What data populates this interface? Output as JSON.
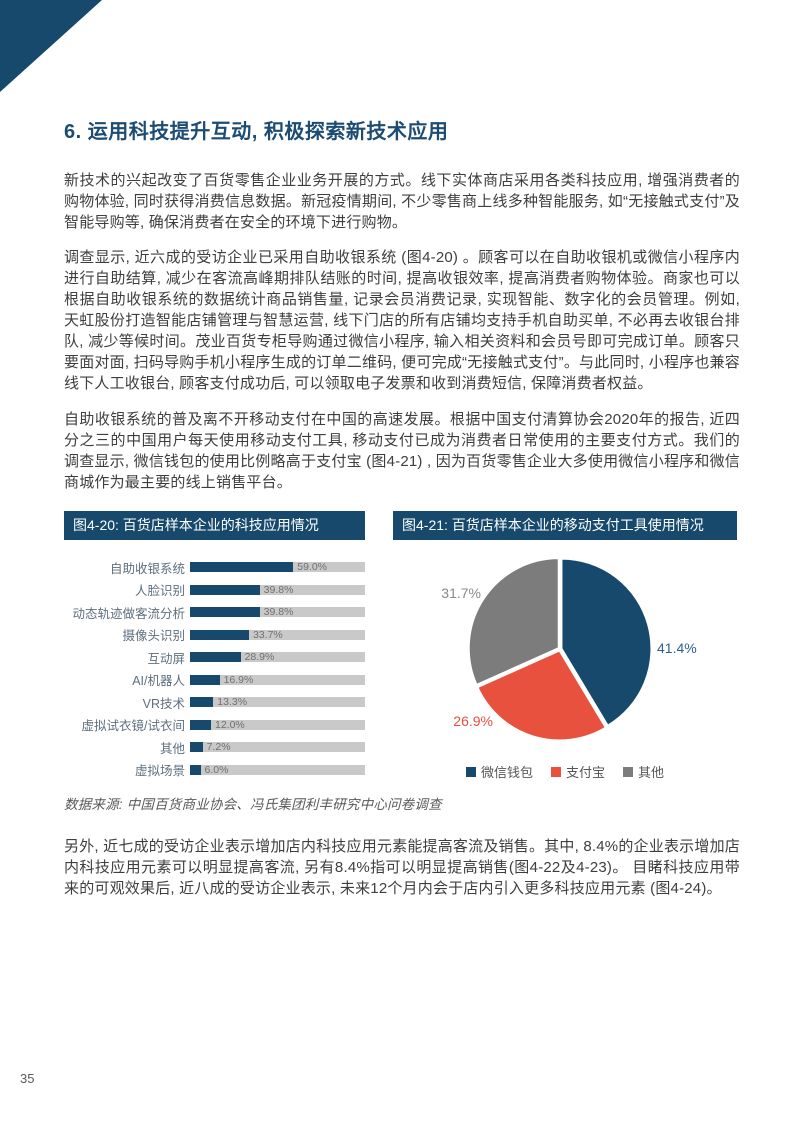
{
  "page": {
    "heading": "6. 运用科技提升互动, 积极探索新技术应用",
    "paragraphs": [
      "新技术的兴起改变了百货零售企业业务开展的方式。线下实体商店采用各类科技应用, 增强消费者的购物体验, 同时获得消费信息数据。新冠疫情期间, 不少零售商上线多种智能服务, 如“无接触式支付”及智能导购等, 确保消费者在安全的环境下进行购物。",
      "调查显示, 近六成的受访企业已采用自助收银系统 (图4-20) 。顾客可以在自助收银机或微信小程序内进行自助结算, 减少在客流高峰期排队结账的时间, 提高收银效率, 提高消费者购物体验。商家也可以根据自助收银系统的数据统计商品销售量, 记录会员消费记录, 实现智能、数字化的会员管理。例如, 天虹股份打造智能店铺管理与智慧运营, 线下门店的所有店铺均支持手机自助买单, 不必再去收银台排队, 减少等候时间。茂业百货专柜导购通过微信小程序, 输入相关资料和会员号即可完成订单。顾客只要面对面, 扫码导购手机小程序生成的订单二维码, 便可完成“无接触式支付”。与此同时, 小程序也兼容线下人工收银台, 顾客支付成功后, 可以领取电子发票和收到消费短信, 保障消费者权益。",
      "自助收银系统的普及离不开移动支付在中国的高速发展。根据中国支付清算协会2020年的报告, 近四分之三的中国用户每天使用移动支付工具, 移动支付已成为消费者日常使用的主要支付方式。我们的调查显示, 微信钱包的使用比例略高于支付宝 (图4-21) , 因为百货零售企业大多使用微信小程序和微信商城作为最主要的线上销售平台。"
    ],
    "closing_paragraph": "另外, 近七成的受访企业表示增加店内科技应用元素能提高客流及销售。其中, 8.4%的企业表示增加店内科技应用元素可以明显提高客流, 另有8.4%指可以明显提高销售(图4-22及4-23)。 目睹科技应用带来的可观效果后, 近八成的受访企业表示, 未来12个月内会于店内引入更多科技应用元素 (图4-24)。",
    "source_note": "数据来源: 中国百货商业协会、冯氏集团利丰研究中心问卷调查",
    "page_number": "35"
  },
  "colors": {
    "navy": "#17496D",
    "heading_blue": "#1C4B73",
    "red": "#E8513D",
    "pie_gray": "#7C7C7C",
    "bar_track_gray": "#C9C9C9",
    "pie_label_blue": "#2E6093",
    "pie_label_gray": "#8A8A8A"
  },
  "chart_data": [
    {
      "type": "bar",
      "orientation": "horizontal",
      "title": "图4-20: 百货店样本企业的科技应用情况",
      "categories": [
        "自助收银系统",
        "人脸识别",
        "动态轨迹做客流分析",
        "摄像头识别",
        "互动屏",
        "AI/机器人",
        "VR技术",
        "虚拟试衣镜/试衣间",
        "其他",
        "虚拟场景"
      ],
      "values": [
        59.0,
        39.8,
        39.8,
        33.7,
        28.9,
        16.9,
        13.3,
        12.0,
        7.2,
        6.0
      ],
      "value_labels": [
        "59.0%",
        "39.8%",
        "39.8%",
        "33.7%",
        "28.9%",
        "16.9%",
        "13.3%",
        "12.0%",
        "7.2%",
        "6.0%"
      ],
      "xlim": [
        0,
        100
      ],
      "bar_color": "#17496D",
      "track_color": "#C9C9C9",
      "grid": false,
      "legend": false
    },
    {
      "type": "pie",
      "title": "图4-21: 百货店样本企业的移动支付工具使用情况",
      "labels": [
        "微信钱包",
        "支付宝",
        "其他"
      ],
      "values": [
        41.4,
        26.9,
        31.7
      ],
      "value_labels": [
        "41.4%",
        "26.9%",
        "31.7%"
      ],
      "colors": [
        "#17496D",
        "#E8513D",
        "#7C7C7C"
      ],
      "label_colors": [
        "#2E6093",
        "#E8513D",
        "#8A8A8A"
      ],
      "start_angle_deg": -90,
      "direction": "clockwise",
      "legend_position": "bottom"
    }
  ]
}
